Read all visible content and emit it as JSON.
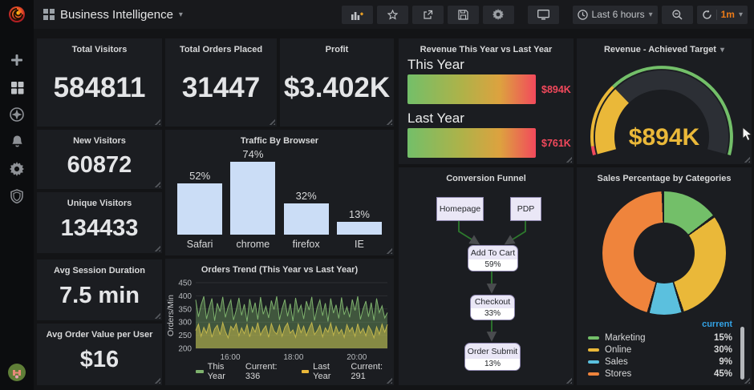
{
  "navbar": {
    "title": "Business Intelligence",
    "time_range": "Last 6 hours",
    "refresh_interval": "1m",
    "icons": [
      "add-panel",
      "star",
      "share",
      "save",
      "settings",
      "tv-mode",
      "clock",
      "zoom-out",
      "refresh"
    ]
  },
  "sidebar": {
    "icons": [
      "plus",
      "dashboards",
      "explore",
      "alerting",
      "configuration",
      "server-admin",
      "user-avatar"
    ]
  },
  "stats": [
    {
      "title": "Total Visitors",
      "value": "584811"
    },
    {
      "title": "Total Orders Placed",
      "value": "31447"
    },
    {
      "title": "Profit",
      "value": "$3.402K"
    },
    {
      "title": "New Visitors",
      "value": "60872"
    },
    {
      "title": "Unique Visitors",
      "value": "134433"
    },
    {
      "title": "Avg Session Duration",
      "value": "7.5 min"
    },
    {
      "title": "Avg Order Value per User",
      "value": "$16"
    }
  ],
  "chart_data": [
    {
      "id": "traffic_by_browser",
      "type": "bar",
      "title": "Traffic By Browser",
      "categories": [
        "Safari",
        "chrome",
        "firefox",
        "IE"
      ],
      "values": [
        52,
        74,
        32,
        13
      ],
      "value_suffix": "%",
      "bar_color": "#CBDDF6",
      "ylim": [
        0,
        80
      ]
    },
    {
      "id": "orders_trend",
      "type": "line",
      "title": "Orders Trend (This Year vs Last Year)",
      "ylabel": "Orders/Min",
      "ylim": [
        200,
        450
      ],
      "yticks": [
        200,
        250,
        300,
        350,
        400,
        450
      ],
      "xticks": [
        "16:00",
        "18:00",
        "20:00"
      ],
      "grid": true,
      "legend_position": "bottom",
      "series": [
        {
          "name": "This Year",
          "current": 336,
          "current_text": "Current: 336",
          "color": "#7EB26D",
          "values": [
            385,
            320,
            366,
            398,
            312,
            354,
            390,
            305,
            372,
            340,
            396,
            318,
            358,
            384,
            308,
            345,
            392,
            326,
            368,
            302,
            388,
            336,
            374,
            310,
            395,
            330,
            360,
            316,
            382,
            348,
            398,
            308,
            352,
            386,
            322,
            370,
            304,
            392,
            338,
            364,
            312,
            380,
            346,
            396,
            306,
            356,
            384,
            324,
            372,
            302,
            390,
            334,
            366,
            314,
            394,
            328,
            358,
            318,
            386,
            344,
            398,
            310,
            350,
            380,
            320,
            374,
            306,
            390,
            336,
            362,
            316,
            336
          ]
        },
        {
          "name": "Last Year",
          "current": 291,
          "current_text": "Current: 291",
          "color": "#EAB839",
          "values": [
            268,
            292,
            246,
            280,
            258,
            296,
            242,
            274,
            288,
            252,
            298,
            264,
            240,
            284,
            270,
            294,
            248,
            278,
            256,
            290,
            244,
            282,
            262,
            298,
            250,
            272,
            286,
            242,
            294,
            266,
            254,
            288,
            246,
            280,
            296,
            258,
            270,
            242,
            292,
            260,
            284,
            248,
            276,
            298,
            252,
            268,
            288,
            244,
            278,
            262,
            296,
            250,
            284,
            256,
            272,
            242,
            290,
            264,
            280,
            246,
            294,
            258,
            276,
            248,
            286,
            268,
            240,
            282,
            254,
            292,
            262,
            291
          ]
        }
      ]
    },
    {
      "id": "revenue_comparison",
      "type": "bar",
      "title": "Revenue This Year vs Last Year",
      "bars": [
        {
          "label": "This Year",
          "value": "$894K"
        },
        {
          "label": "Last Year",
          "value": "$761K"
        }
      ],
      "gradient": [
        "#73BF69",
        "#EAB839",
        "#F2495C"
      ],
      "value_color": "#F2495C"
    },
    {
      "id": "revenue_achieved_target",
      "type": "gauge",
      "title": "Revenue - Achieved Target",
      "value": "$894K",
      "percent": 29,
      "bar_color": "#EAB839",
      "value_color": "#EAB839",
      "thresholds": [
        {
          "color": "#F2495C",
          "to": 3.5
        },
        {
          "color": "#EAB839",
          "to": 29
        },
        {
          "color": "#73BF69",
          "to": 100
        }
      ]
    },
    {
      "id": "conversion_funnel",
      "type": "diagram",
      "title": "Conversion Funnel",
      "arrow_color": "#2d7a2d",
      "nodes": [
        {
          "label": "Homepage"
        },
        {
          "label": "PDP"
        },
        {
          "label": "Add To Cart",
          "value": "59%"
        },
        {
          "label": "Checkout",
          "value": "33%"
        },
        {
          "label": "Order Submit",
          "value": "13%"
        }
      ],
      "edges": [
        [
          "Homepage",
          "Add To Cart"
        ],
        [
          "PDP",
          "Add To Cart"
        ],
        [
          "Add To Cart",
          "Checkout"
        ],
        [
          "Checkout",
          "Order Submit"
        ]
      ]
    },
    {
      "id": "sales_percentage_by_categories",
      "type": "pie",
      "title": "Sales Percentage by Categories",
      "legend_header": "current",
      "slices": [
        {
          "label": "Marketing",
          "value": 15,
          "display": "15%",
          "color": "#73BF69"
        },
        {
          "label": "Online",
          "value": 30,
          "display": "30%",
          "color": "#EAB839"
        },
        {
          "label": "Sales",
          "value": 9,
          "display": "9%",
          "color": "#5BC0DE"
        },
        {
          "label": "Stores",
          "value": 45,
          "display": "45%",
          "color": "#EF843C"
        }
      ]
    }
  ]
}
